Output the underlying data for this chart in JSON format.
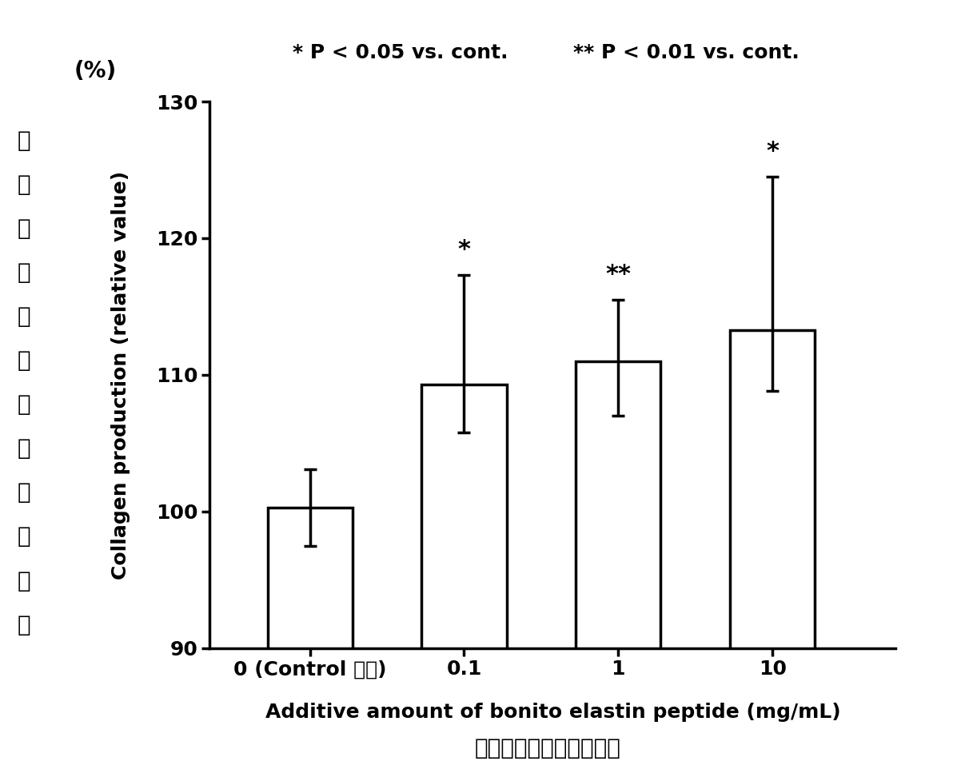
{
  "categories": [
    "0 (Control 对照)",
    "0.1",
    "1",
    "10"
  ],
  "bar_values": [
    100.3,
    109.3,
    111.0,
    113.3
  ],
  "error_upper": [
    2.8,
    8.0,
    4.5,
    11.2
  ],
  "error_lower": [
    2.8,
    3.5,
    4.0,
    4.5
  ],
  "significance": [
    "",
    "*",
    "**",
    "*"
  ],
  "ylim": [
    90,
    130
  ],
  "yticks": [
    90,
    100,
    110,
    120,
    130
  ],
  "ylabel_en": "Collagen production (relative value)",
  "ylabel_cn_chars": [
    "胶",
    "原",
    "蛋",
    "白",
    "的",
    "生",
    "成",
    "（",
    "相",
    "对",
    "値",
    "）"
  ],
  "ylabel_unit": "(%)",
  "xlabel_en": "Additive amount of bonito elastin peptide (mg/mL)",
  "xlabel_cn": "鳞鱼弹性蛋白肽的添加量",
  "legend_text1": "* P < 0.05 vs. cont.",
  "legend_text2": "** P < 0.01 vs. cont.",
  "bar_color": "#ffffff",
  "bar_edgecolor": "#000000",
  "bar_width": 0.55,
  "bar_positions": [
    1,
    2,
    3,
    4
  ],
  "background_color": "#ffffff",
  "axis_fontsize": 18,
  "tick_fontsize": 18,
  "sig_fontsize": 22,
  "legend_fontsize": 18,
  "cn_fontsize": 20
}
